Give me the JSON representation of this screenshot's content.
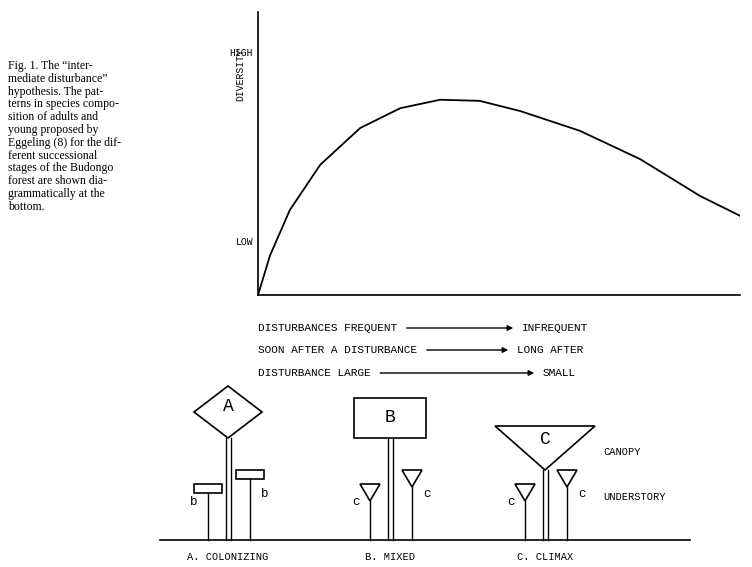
{
  "caption": [
    "Fig. 1. The “inter-",
    "mediate disturbance”",
    "hypothesis. The pat-",
    "terns in species compo-",
    "sition of adults and",
    "young proposed by",
    "Eggeling (8) for the dif-",
    "ferent successional",
    "stages of the Budongo",
    "forest are shown dia-",
    "grammatically at the",
    "bottom."
  ],
  "chart_data": {
    "type": "line",
    "ylabel": "DIVERSITY",
    "x": [
      0,
      2.5,
      6.6,
      12.9,
      21.2,
      29.5,
      37.8,
      46,
      54.4,
      66.8,
      79.3,
      91.7,
      100
    ],
    "values": [
      0,
      14,
      30,
      46,
      59,
      66,
      69,
      68.6,
      65,
      58,
      48,
      35,
      28
    ],
    "xlim": [
      0,
      100
    ],
    "ylim": [
      0,
      100
    ],
    "xticks": [],
    "yticks": [
      {
        "value": 19,
        "label": "LOW"
      },
      {
        "value": 86,
        "label": "HIGH"
      }
    ],
    "tick_labels": "y",
    "color": "#000000",
    "grid": false
  },
  "gradients": [
    {
      "from": "DISTURBANCES FREQUENT",
      "to": "INFREQUENT"
    },
    {
      "from": "SOON AFTER A DISTURBANCE",
      "to": "LONG AFTER"
    },
    {
      "from": "DISTURBANCE LARGE",
      "to": "SMALL"
    }
  ],
  "diagram": {
    "strata": [
      "CANOPY",
      "UNDERSTORY"
    ],
    "stages": [
      {
        "label": "A. COLONIZING",
        "canopy": "A",
        "understory": "b"
      },
      {
        "label": "B. MIXED",
        "canopy": "B",
        "understory": "c"
      },
      {
        "label": "C. CLIMAX",
        "canopy": "C",
        "understory": "c"
      }
    ]
  }
}
